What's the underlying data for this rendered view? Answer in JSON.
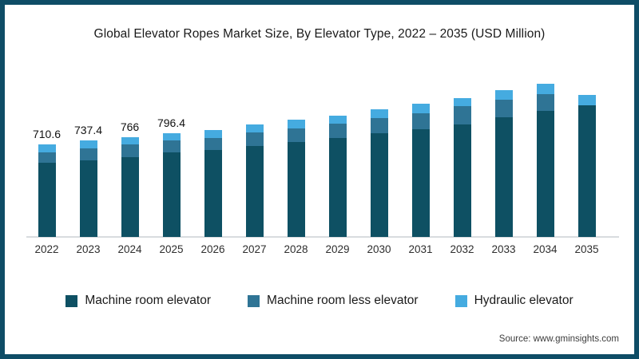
{
  "title": "Global Elevator Ropes Market Size, By Elevator Type, 2022 – 2035 (USD Million)",
  "source": "Source: www.gminsights.com",
  "colors": {
    "frame_border": "#0E4D66",
    "axis_line": "#D8DCDF",
    "background": "#FFFFFF",
    "machine_room": "#0E5063",
    "machine_room_less": "#2F7495",
    "hydraulic": "#45ABE0"
  },
  "legend": {
    "items": [
      {
        "label": "Machine room elevator",
        "color": "#0E5063"
      },
      {
        "label": "Machine room less elevator",
        "color": "#2F7495"
      },
      {
        "label": "Hydraulic elevator",
        "color": "#45ABE0"
      }
    ]
  },
  "chart_data": {
    "type": "bar",
    "stacked": true,
    "title": "Global Elevator Ropes Market Size, By Elevator Type, 2022 – 2035 (USD Million)",
    "xlabel": "",
    "ylabel": "USD Million",
    "ylim": [
      0,
      1250
    ],
    "grid": false,
    "legend_position": "bottom",
    "categories": [
      "2022",
      "2023",
      "2024",
      "2025",
      "2026",
      "2027",
      "2028",
      "2029",
      "2030",
      "2031",
      "2032",
      "2033",
      "2034",
      "2035"
    ],
    "series": [
      {
        "name": "Machine room elevator",
        "color": "#0E5063",
        "values": [
          566,
          585,
          613,
          647.4,
          664,
          698,
          725,
          756,
          796,
          827,
          861,
          918,
          967,
          1008
        ]
      },
      {
        "name": "Machine room less elevator",
        "color": "#2F7495",
        "values": [
          83.6,
          95,
          96,
          93,
          93,
          102,
          108,
          112,
          112,
          122,
          139,
          133,
          126,
          0
        ]
      },
      {
        "name": "Hydraulic elevator",
        "color": "#45ABE0",
        "values": [
          61,
          57.4,
          57,
          56,
          61,
          63,
          64,
          63,
          67,
          71,
          65,
          71,
          79,
          79
        ]
      }
    ],
    "totals": [
      710.6,
      737.4,
      766,
      796.4,
      818,
      863,
      897,
      931,
      975,
      1020,
      1065,
      1122,
      1172,
      1087
    ],
    "data_labels": [
      "710.6",
      "737.4",
      "766",
      "796.4",
      "",
      "",
      "",
      "",
      "",
      "",
      "",
      "",
      "",
      ""
    ]
  }
}
